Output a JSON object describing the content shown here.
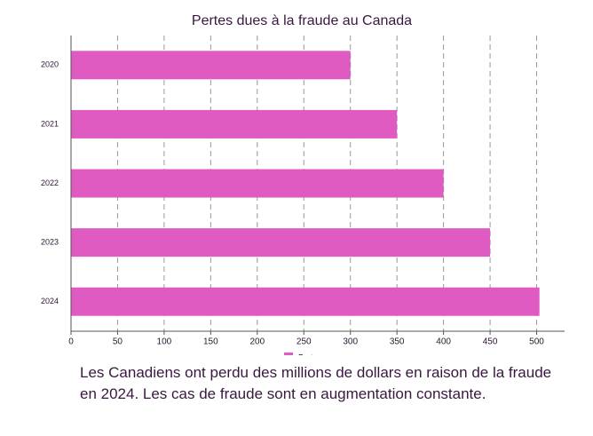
{
  "chart_data": {
    "type": "bar",
    "orientation": "horizontal",
    "title": "Pertes dues à la fraude au Canada",
    "categories": [
      "2020",
      "2021",
      "2022",
      "2023",
      "2024"
    ],
    "series": [
      {
        "name": "Pertes",
        "color": "#e05bc1",
        "values": [
          300,
          350,
          400,
          450,
          503
        ]
      }
    ],
    "xlim": [
      0,
      530
    ],
    "xticks": [
      0,
      50,
      100,
      150,
      200,
      250,
      300,
      350,
      400,
      450,
      500
    ],
    "grid": true,
    "legend": "bottom",
    "caption": "Les Canadiens ont perdu des millions de dollars en raison de la fraude en 2024. Les cas de fraude sont en augmentation constante."
  }
}
